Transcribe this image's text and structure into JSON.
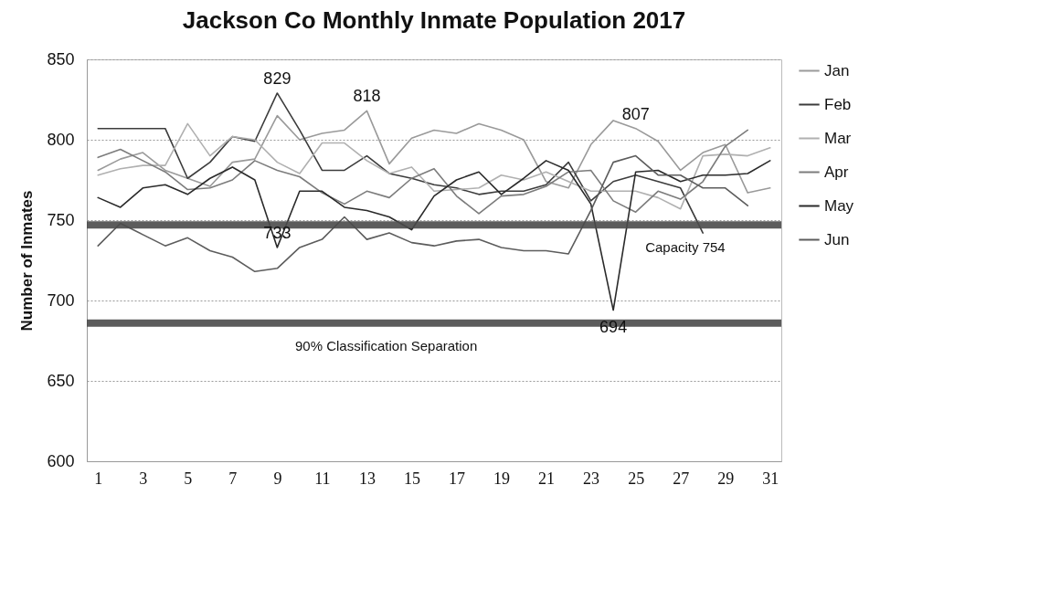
{
  "chart_data": {
    "type": "line",
    "title": "Jackson Co Monthly Inmate Population 2017",
    "ylabel": "Number of Inmates",
    "x": [
      1,
      2,
      3,
      4,
      5,
      6,
      7,
      8,
      9,
      10,
      11,
      12,
      13,
      14,
      15,
      16,
      17,
      18,
      19,
      20,
      21,
      22,
      23,
      24,
      25,
      26,
      27,
      28,
      29,
      30,
      31
    ],
    "xlim": [
      0.5,
      31.5
    ],
    "xticks": [
      1,
      3,
      5,
      7,
      9,
      11,
      13,
      15,
      17,
      19,
      21,
      23,
      25,
      27,
      29,
      31
    ],
    "ylim": [
      600,
      850
    ],
    "yticks": [
      600,
      650,
      700,
      750,
      800,
      850
    ],
    "grid": "y",
    "legend": "right",
    "marker": "none",
    "line_style": "solid",
    "series": [
      {
        "name": "Jan",
        "color": "#9a9a9a",
        "values": [
          781,
          788,
          792,
          781,
          776,
          771,
          786,
          788,
          815,
          800,
          804,
          806,
          818,
          785,
          801,
          806,
          804,
          810,
          806,
          800,
          774,
          770,
          797,
          812,
          807,
          799,
          781,
          792,
          797,
          767,
          770
        ]
      },
      {
        "name": "Feb",
        "color": "#3c3c3c",
        "x": [
          1,
          2,
          3,
          4,
          5,
          6,
          7,
          8,
          9,
          10,
          11,
          12,
          13,
          14,
          15,
          16,
          17,
          18,
          19,
          20,
          21,
          22,
          23,
          24,
          25,
          26,
          27,
          28
        ],
        "values": [
          807,
          807,
          807,
          807,
          776,
          786,
          802,
          799,
          829,
          806,
          781,
          781,
          790,
          779,
          776,
          772,
          770,
          766,
          768,
          768,
          772,
          786,
          762,
          774,
          778,
          774,
          770,
          742
        ]
      },
      {
        "name": "Mar",
        "color": "#b0b0b0",
        "values": [
          778,
          782,
          784,
          784,
          810,
          790,
          802,
          800,
          786,
          779,
          798,
          798,
          787,
          779,
          783,
          768,
          769,
          770,
          778,
          775,
          780,
          774,
          768,
          768,
          768,
          764,
          757,
          790,
          791,
          790,
          795
        ]
      },
      {
        "name": "Apr",
        "color": "#7c7c7c",
        "x": [
          1,
          2,
          3,
          4,
          5,
          6,
          7,
          8,
          9,
          10,
          11,
          12,
          13,
          14,
          15,
          16,
          17,
          18,
          19,
          20,
          21,
          22,
          23,
          24,
          25,
          26,
          27,
          28,
          29,
          30
        ],
        "values": [
          789,
          794,
          787,
          780,
          769,
          770,
          775,
          787,
          781,
          777,
          767,
          760,
          768,
          764,
          776,
          782,
          765,
          754,
          765,
          766,
          771,
          780,
          781,
          762,
          755,
          768,
          763,
          774,
          796,
          806
        ]
      },
      {
        "name": "May",
        "color": "#2a2a2a",
        "values": [
          764,
          758,
          770,
          772,
          766,
          776,
          783,
          775,
          733,
          768,
          768,
          758,
          756,
          752,
          744,
          765,
          775,
          780,
          766,
          776,
          787,
          781,
          760,
          694,
          780,
          781,
          774,
          778,
          778,
          779,
          787
        ]
      },
      {
        "name": "Jun",
        "color": "#5c5c5c",
        "x": [
          1,
          2,
          3,
          4,
          5,
          6,
          7,
          8,
          9,
          10,
          11,
          12,
          13,
          14,
          15,
          16,
          17,
          18,
          19,
          20,
          21,
          22,
          23,
          24,
          25,
          26,
          27,
          28,
          29,
          30
        ],
        "values": [
          734,
          748,
          741,
          734,
          739,
          731,
          727,
          718,
          720,
          733,
          738,
          752,
          738,
          742,
          736,
          734,
          737,
          738,
          733,
          731,
          731,
          729,
          756,
          786,
          790,
          778,
          778,
          770,
          770,
          759
        ]
      }
    ],
    "ref_lines": [
      {
        "axis": "y",
        "value": 747,
        "label": "Capacity 754",
        "color": "#4a4a4a"
      },
      {
        "axis": "y",
        "value": 686,
        "label": "90% Classification Separation",
        "color": "#4a4a4a"
      }
    ],
    "annotations": [
      {
        "text": "829",
        "x": 9,
        "y": 829
      },
      {
        "text": "733",
        "x": 9,
        "y": 733
      },
      {
        "text": "818",
        "x": 13,
        "y": 818
      },
      {
        "text": "807",
        "x": 25,
        "y": 807
      },
      {
        "text": "694",
        "x": 24,
        "y": 694
      }
    ]
  }
}
